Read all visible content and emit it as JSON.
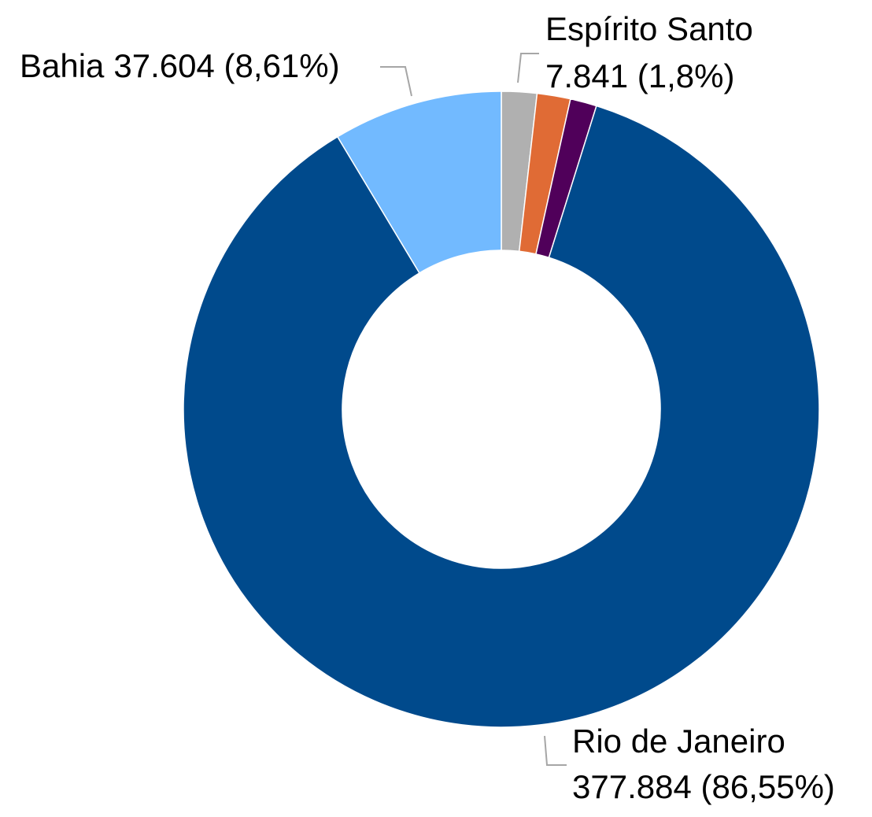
{
  "chart_data": {
    "type": "donut",
    "categories": [
      "Espírito Santo",
      null,
      null,
      "Rio de Janeiro",
      "Bahia"
    ],
    "values": [
      7841,
      7400,
      5877,
      377884,
      37604
    ],
    "value_labels": [
      "7.841 (1,8%)",
      null,
      null,
      "377.884 (86,55%)",
      "37.604 (8,61%)"
    ],
    "colors": [
      "#b0b0b0",
      "#e06b35",
      "#50005a",
      "#004a8c",
      "#72baff"
    ]
  }
}
